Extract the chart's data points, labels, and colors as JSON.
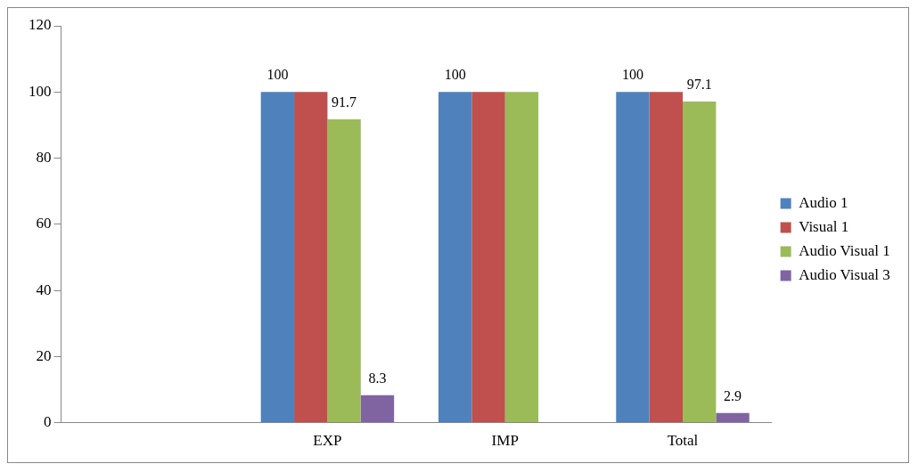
{
  "chart_data": {
    "type": "bar",
    "categories": [
      null,
      "EXP",
      "IMP",
      "Total"
    ],
    "series": [
      {
        "name": "Audio 1",
        "color": "#4f81bd",
        "values": [
          null,
          100,
          100,
          100
        ],
        "value_labels": [
          null,
          "100",
          "100",
          "100"
        ]
      },
      {
        "name": "Visual 1",
        "color": "#c0504d",
        "values": [
          null,
          100,
          100,
          100
        ],
        "value_labels": [
          null,
          null,
          null,
          null
        ]
      },
      {
        "name": "Audio Visual 1",
        "color": "#9bbb59",
        "values": [
          null,
          91.7,
          100,
          97.1
        ],
        "value_labels": [
          null,
          "91.7",
          null,
          "97.1"
        ]
      },
      {
        "name": "Audio Visual 3",
        "color": "#8064a2",
        "values": [
          null,
          8.3,
          null,
          2.9
        ],
        "value_labels": [
          null,
          "8.3",
          null,
          "2.9"
        ]
      }
    ],
    "ylim": [
      0,
      120
    ],
    "yticks": [
      0,
      20,
      40,
      60,
      80,
      100,
      120
    ],
    "grid": false,
    "legend": "right"
  }
}
